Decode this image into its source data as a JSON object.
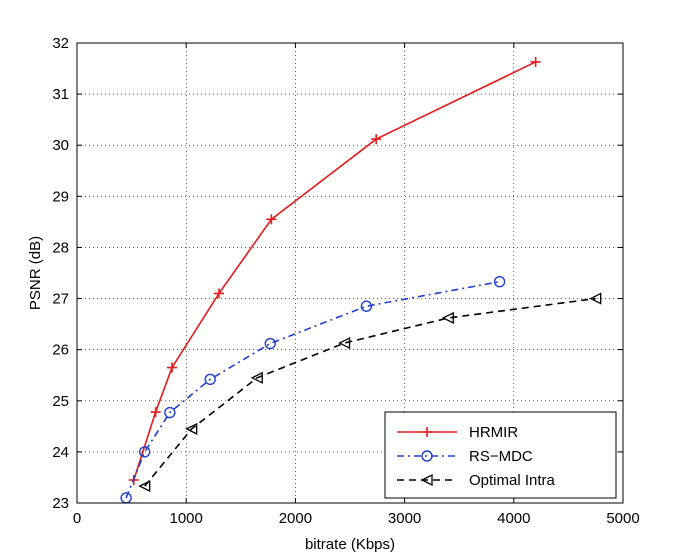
{
  "chart_data": {
    "type": "line",
    "title": "",
    "xlabel": "bitrate (Kbps)",
    "ylabel": "PSNR (dB)",
    "xlim": [
      0,
      5000
    ],
    "ylim": [
      23,
      32
    ],
    "xticks": [
      0,
      1000,
      2000,
      3000,
      4000,
      5000
    ],
    "yticks": [
      23,
      24,
      25,
      26,
      27,
      28,
      29,
      30,
      31,
      32
    ],
    "grid": true,
    "legend_position": "bottom-right",
    "series": [
      {
        "name": "HRMIR",
        "color": "#e41a1c",
        "line_style": "solid",
        "marker": "plus",
        "points": [
          [
            520,
            23.45
          ],
          [
            720,
            24.78
          ],
          [
            870,
            25.65
          ],
          [
            1300,
            27.1
          ],
          [
            1780,
            28.55
          ],
          [
            2740,
            30.12
          ],
          [
            4200,
            31.63
          ]
        ]
      },
      {
        "name": "RS−MDC",
        "color": "#1f3fd0",
        "line_style": "dashdot",
        "marker": "circle",
        "points": [
          [
            450,
            23.1
          ],
          [
            620,
            24.0
          ],
          [
            850,
            24.77
          ],
          [
            1220,
            25.42
          ],
          [
            1770,
            26.12
          ],
          [
            2650,
            26.85
          ],
          [
            3870,
            27.33
          ]
        ]
      },
      {
        "name": "Optimal Intra",
        "color": "#000000",
        "line_style": "dashed",
        "marker": "triangle-left",
        "points": [
          [
            620,
            23.33
          ],
          [
            1050,
            24.45
          ],
          [
            1650,
            25.45
          ],
          [
            2450,
            26.13
          ],
          [
            3400,
            26.62
          ],
          [
            4750,
            27.0
          ]
        ]
      }
    ]
  }
}
